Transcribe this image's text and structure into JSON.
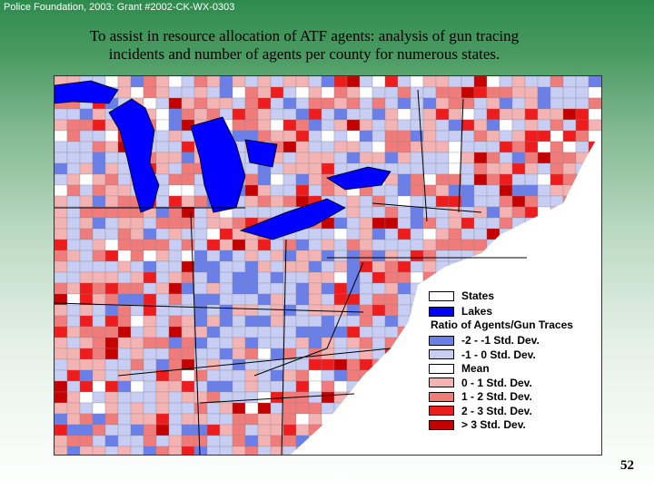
{
  "header": {
    "source": "Police Foundation, 2003: Grant #2002-CK-WX-0303"
  },
  "title": {
    "line1": "To assist in resource allocation of ATF agents: analysis of gun tracing",
    "line2": "incidents and number of agents per county for numerous states."
  },
  "map": {
    "colors": {
      "lake": "#0000ff",
      "state_border": "#000000",
      "background": "#ffffff"
    }
  },
  "legend": {
    "states_label": "States",
    "lakes_label": "Lakes",
    "ratio_heading": "Ratio of Agents/Gun Traces",
    "classes": [
      {
        "label": "-2 - -1 Std. Dev.",
        "color": "#6b7fe8"
      },
      {
        "label": "-1 - 0 Std. Dev.",
        "color": "#c7cdf3"
      },
      {
        "label": "Mean",
        "color": "#ffffff"
      },
      {
        "label": "0 - 1 Std. Dev.",
        "color": "#f4b3b3"
      },
      {
        "label": "1 - 2 Std. Dev.",
        "color": "#ef7b7b"
      },
      {
        "label": "2 - 3 Std. Dev.",
        "color": "#ee1c1c"
      },
      {
        "label": "> 3 Std. Dev.",
        "color": "#c40000"
      }
    ],
    "states_color": "#ffffff",
    "lakes_color": "#0000ff"
  },
  "page_number": "52"
}
